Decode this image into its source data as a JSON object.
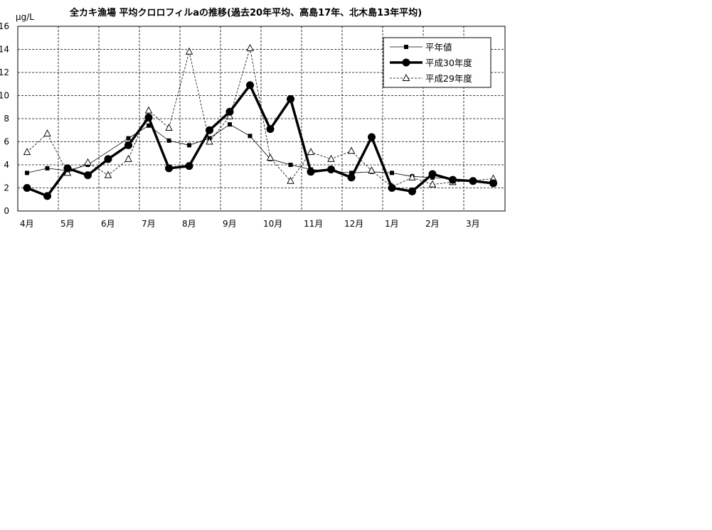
{
  "chart_data": {
    "type": "line",
    "title": "全カキ漁場 平均クロロフィルaの推移(過去20年平均、高島17年、北木島13年平均)",
    "ylabel": "μg/L",
    "xlabel": "",
    "ylim": [
      0,
      16
    ],
    "y_ticks": [
      "0",
      "2",
      "4",
      "6",
      "8",
      "10",
      "12",
      "14",
      "16"
    ],
    "month_labels": [
      "4月",
      "5月",
      "6月",
      "7月",
      "8月",
      "9月",
      "10月",
      "11月",
      "12月",
      "1月",
      "2月",
      "3月"
    ],
    "grid": true,
    "legend_position": "top-right",
    "series": [
      {
        "name": "平年値",
        "marker": "square",
        "style": "thin",
        "values": [
          3.3,
          3.7,
          3.5,
          4.0,
          null,
          6.3,
          7.4,
          6.1,
          5.7,
          6.3,
          7.5,
          6.5,
          4.5,
          4.0,
          3.6,
          null,
          3.3,
          3.4,
          3.3,
          3.0,
          2.9,
          2.8,
          2.6,
          2.5
        ]
      },
      {
        "name": "平成30年度",
        "marker": "circle",
        "style": "thick",
        "values": [
          2.0,
          1.3,
          3.7,
          3.1,
          4.5,
          5.7,
          8.1,
          3.7,
          3.9,
          7.0,
          8.6,
          10.9,
          7.1,
          9.7,
          3.4,
          3.6,
          2.9,
          6.4,
          2.0,
          1.7,
          3.2,
          2.7,
          2.6,
          2.4
        ]
      },
      {
        "name": "平成29年度",
        "marker": "triangle",
        "style": "dashed",
        "values": [
          5.1,
          6.7,
          3.3,
          4.2,
          3.1,
          4.5,
          8.7,
          7.2,
          13.8,
          6.0,
          8.2,
          14.1,
          4.6,
          2.6,
          5.1,
          4.5,
          5.2,
          3.5,
          2.1,
          2.9,
          2.3,
          2.5,
          null,
          2.8
        ]
      }
    ]
  }
}
